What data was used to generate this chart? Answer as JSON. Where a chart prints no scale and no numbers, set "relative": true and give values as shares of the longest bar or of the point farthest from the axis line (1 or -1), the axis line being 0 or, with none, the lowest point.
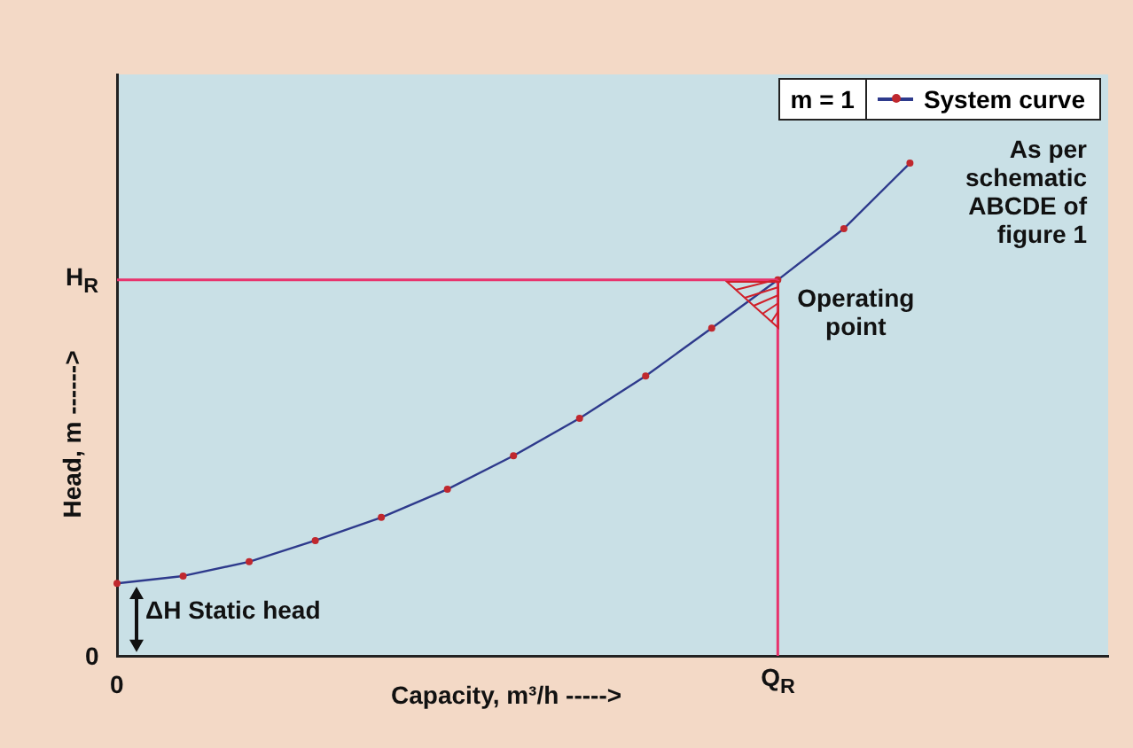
{
  "chart_data": {
    "type": "line",
    "relative": true,
    "xlabel": "Capacity, m³/h ----->",
    "ylabel": "Head, m ------>",
    "legend_title": "m = 1",
    "legend": "top right",
    "marker": "circle",
    "line_style": "solid",
    "grid": false,
    "categories": [
      null,
      null,
      null,
      null,
      null,
      null,
      null,
      null,
      null,
      null,
      null,
      null,
      null,
      null,
      null,
      null
    ],
    "series": [
      {
        "name": "System curve",
        "color": "#2e3a8c",
        "values": [
          0.147,
          0.162,
          0.191,
          0.234,
          0.281,
          0.338,
          0.406,
          0.482,
          0.568,
          0.665,
          0.763,
          0.867,
          1.0,
          null,
          null,
          null
        ]
      }
    ],
    "ref_lines": [
      {
        "axis": "y",
        "value": 0.763,
        "label": "H$_{R}$",
        "color": "#e8336d"
      }
    ],
    "annotations": [
      "As per schematic ABCDE of figure 1",
      "Operating point",
      "ΔH Static head",
      "0",
      "0",
      "Q$_{R}$"
    ]
  }
}
